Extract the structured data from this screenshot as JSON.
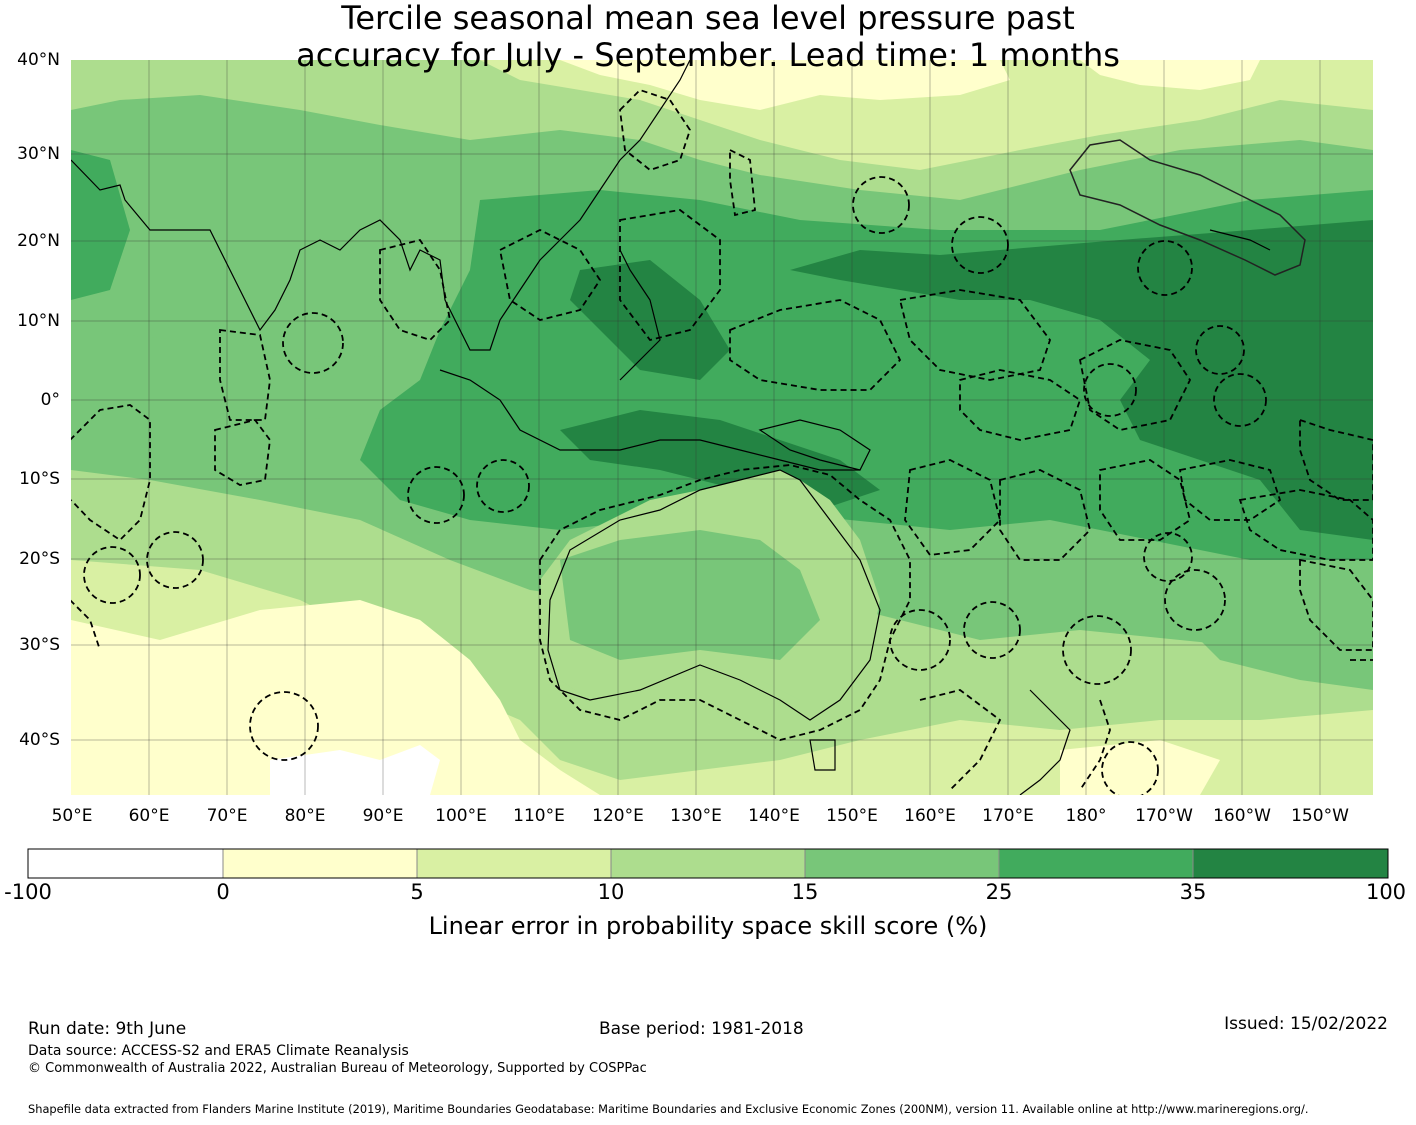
{
  "title": {
    "line1": "Tercile seasonal mean sea level pressure past",
    "line2": "accuracy for July - September. Lead time: 1 months"
  },
  "map": {
    "lat_labels": [
      "40°N",
      "30°N",
      "20°N",
      "10°N",
      "0°",
      "10°S",
      "20°S",
      "30°S",
      "40°S"
    ],
    "lon_labels": [
      "50°E",
      "60°E",
      "70°E",
      "80°E",
      "90°E",
      "100°E",
      "110°E",
      "120°E",
      "130°E",
      "140°E",
      "150°E",
      "160°E",
      "170°E",
      "180°",
      "170°W",
      "160°W",
      "150°W"
    ],
    "colors": {
      "negative": "#ffffff",
      "c0_5": "#ffffcc",
      "c5_10": "#d9f0a3",
      "c10_15": "#addd8e",
      "c15_25": "#78c679",
      "c25_35": "#41ab5d",
      "c35_100": "#238443"
    }
  },
  "colorbar": {
    "ticks": [
      "-100",
      "0",
      "5",
      "10",
      "15",
      "25",
      "35",
      "100"
    ],
    "label": "Linear error in probability space skill score (%)"
  },
  "footer": {
    "run_date": "Run date: 9th June",
    "base_period": "Base period: 1981-2018",
    "issued": "Issued: 15/02/2022",
    "data_source": "Data source: ACCESS-S2 and ERA5 Climate Reanalysis",
    "copyright": "© Commonwealth of Australia 2022, Australian Bureau of Meteorology, Supported by COSPPac",
    "shapefile": "Shapefile data extracted from Flanders Marine Institute (2019), Maritime Boundaries Geodatabase: Maritime Boundaries and Exclusive Economic Zones (200NM), version 11. Available online at http://www.marineregions.org/."
  }
}
